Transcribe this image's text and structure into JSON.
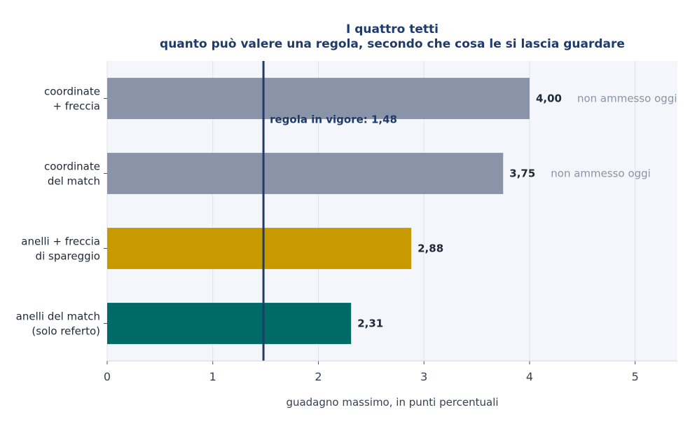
{
  "chart_data": {
    "type": "bar",
    "orientation": "horizontal",
    "title": "I quattro tetti",
    "subtitle": "quanto può valere una regola, secondo che cosa le si lascia guardare",
    "xlabel": "guadagno massimo, in punti percentuali",
    "ylabel": "",
    "xlim": [
      0,
      5.4
    ],
    "xticks": [
      "0",
      "1",
      "2",
      "3",
      "4",
      "5"
    ],
    "grid": true,
    "categories": [
      [
        "coordinate",
        "+ freccia"
      ],
      [
        "coordinate",
        "del match"
      ],
      [
        "anelli + freccia",
        "di spareggio"
      ],
      [
        "anelli del match",
        "(solo referto)"
      ]
    ],
    "values": [
      4.0,
      3.75,
      2.88,
      2.31
    ],
    "value_labels": [
      "4,00",
      "3,75",
      "2,88",
      "2,31"
    ],
    "notes": [
      "non ammesso oggi",
      "non ammesso oggi",
      "",
      ""
    ],
    "colors": [
      "#8a94a8",
      "#8a94a8",
      "#c79a00",
      "#006b66"
    ],
    "reference_line": {
      "value": 1.48,
      "label": "regola in vigore: 1,48",
      "color": "#1f3a6b"
    },
    "colors_theme": {
      "title": "#1f3a6b",
      "plot_bg": "#f4f6fb",
      "grid": "#dde2ec"
    }
  }
}
